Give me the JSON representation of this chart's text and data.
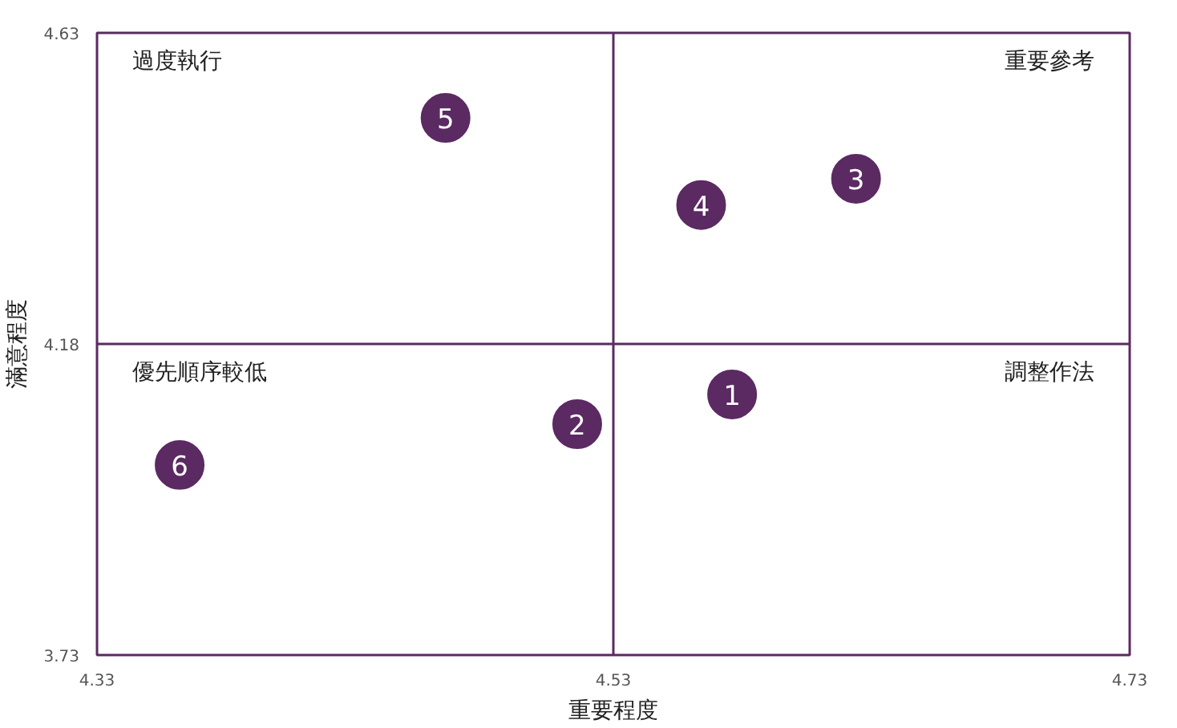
{
  "chart_data": {
    "type": "scatter",
    "xlabel": "重要程度",
    "ylabel": "滿意程度",
    "xlim": [
      4.33,
      4.73
    ],
    "ylim": [
      3.73,
      4.63
    ],
    "xticks": [
      4.33,
      4.53,
      4.73
    ],
    "yticks": [
      3.73,
      4.18,
      4.63
    ],
    "marker": "circle",
    "ref_lines": [
      {
        "axis": "x",
        "value": 4.53,
        "color": "#5b2a62"
      },
      {
        "axis": "y",
        "value": 4.18,
        "color": "#5b2a62"
      }
    ],
    "annotations": [
      "過度執行",
      "重要參考",
      "優先順序較低",
      "調整作法"
    ],
    "series": [
      {
        "name": "1",
        "color": "#5b2a62",
        "x": [
          4.576
        ],
        "values": [
          4.107
        ]
      },
      {
        "name": "2",
        "color": "#5b2a62",
        "x": [
          4.516
        ],
        "values": [
          4.064
        ]
      },
      {
        "name": "3",
        "color": "#5b2a62",
        "x": [
          4.624
        ],
        "values": [
          4.419
        ]
      },
      {
        "name": "4",
        "color": "#5b2a62",
        "x": [
          4.564
        ],
        "values": [
          4.381
        ]
      },
      {
        "name": "5",
        "color": "#5b2a62",
        "x": [
          4.465
        ],
        "values": [
          4.507
        ]
      },
      {
        "name": "6",
        "color": "#5b2a62",
        "x": [
          4.362
        ],
        "values": [
          4.005
        ]
      }
    ]
  }
}
